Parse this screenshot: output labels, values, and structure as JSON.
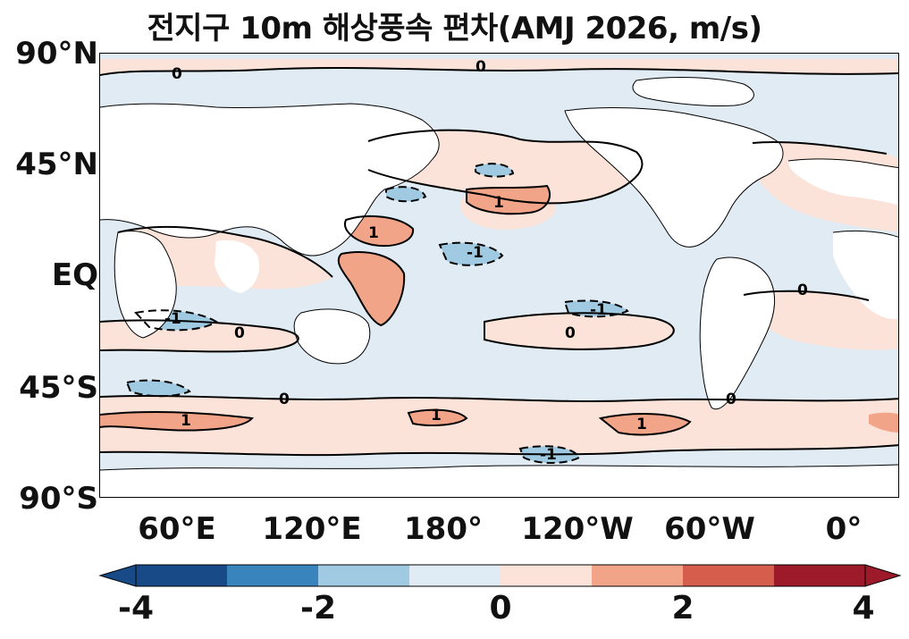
{
  "title": "전지구 10m 해상풍속 편차(AMJ 2026, m/s)",
  "map": {
    "region": "global",
    "projection": "PlateCarree, centered near 150°E",
    "variable": "10m sea surface wind speed anomaly",
    "units": "m/s",
    "contour_labels": [
      "-1",
      "0",
      "1"
    ]
  },
  "axes": {
    "y_ticks": [
      "90°N",
      "45°N",
      "EQ",
      "45°S",
      "90°S"
    ],
    "x_ticks": [
      "60°E",
      "120°E",
      "180°",
      "120°W",
      "60°W",
      "0°"
    ]
  },
  "colorbar": {
    "ticks": [
      "-4",
      "-2",
      "0",
      "2",
      "4"
    ],
    "colors": [
      "#174a87",
      "#3a84bd",
      "#9fcae1",
      "#e0ebf4",
      "#fbe3d9",
      "#f2a488",
      "#d45d4c",
      "#9d1a2a"
    ],
    "extend": "both"
  },
  "colors": {
    "land": "#ffffff",
    "weak_neg": "#e0ebf4",
    "mod_neg": "#9fcae1",
    "weak_pos": "#fbe3d9",
    "mod_pos": "#f2a488",
    "contour": "#000000"
  }
}
